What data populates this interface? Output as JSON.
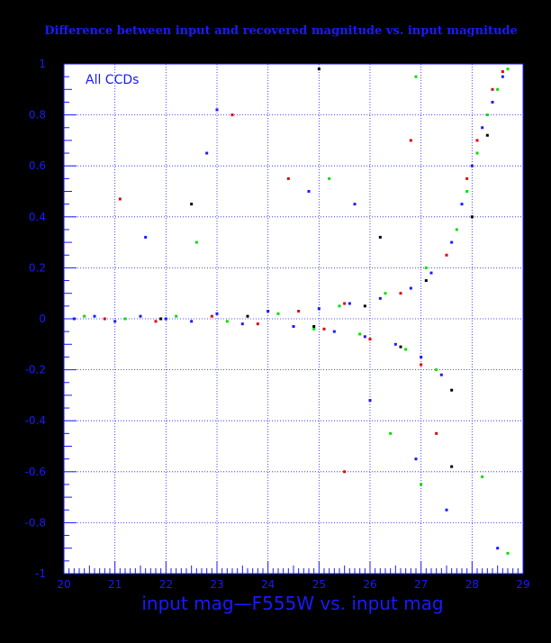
{
  "chart_data": {
    "type": "scatter",
    "title": "Difference between input and recovered magnitude vs. input magnitude",
    "xlabel": "input mag—F555W vs. input mag",
    "ylabel": "",
    "annotation": "All CCDs",
    "xlim": [
      20,
      29
    ],
    "ylim": [
      -1,
      1
    ],
    "x_ticks": [
      "20",
      "21",
      "22",
      "23",
      "24",
      "25",
      "26",
      "27",
      "28",
      "29"
    ],
    "y_ticks": [
      "-1",
      "-0.8",
      "-0.6",
      "-0.4",
      "-0.2",
      "0",
      "0.2",
      "0.4",
      "0.6",
      "0.8",
      "1"
    ],
    "grid": true,
    "colors": {
      "background": "#ffffff",
      "page": "#000000",
      "axis": "#1a1aff",
      "grid": "#1a1aff",
      "text": "#1a1aff"
    },
    "series": [
      {
        "color": "#1a1aff",
        "points": [
          [
            20.2,
            0.0
          ],
          [
            20.6,
            0.01
          ],
          [
            21.0,
            -0.01
          ],
          [
            21.5,
            0.01
          ],
          [
            22.0,
            0.0
          ],
          [
            22.5,
            -0.01
          ],
          [
            23.0,
            0.02
          ],
          [
            23.5,
            -0.02
          ],
          [
            24.0,
            0.03
          ],
          [
            24.5,
            -0.03
          ],
          [
            25.0,
            0.04
          ],
          [
            25.3,
            -0.05
          ],
          [
            25.6,
            0.06
          ],
          [
            25.9,
            -0.07
          ],
          [
            26.2,
            0.08
          ],
          [
            26.5,
            -0.1
          ],
          [
            26.8,
            0.12
          ],
          [
            27.0,
            -0.15
          ],
          [
            27.2,
            0.18
          ],
          [
            27.4,
            -0.22
          ],
          [
            27.6,
            0.3
          ],
          [
            27.8,
            0.45
          ],
          [
            28.0,
            0.6
          ],
          [
            28.2,
            0.75
          ],
          [
            28.4,
            0.85
          ],
          [
            28.6,
            0.95
          ],
          [
            23.0,
            0.82
          ],
          [
            24.8,
            0.5
          ],
          [
            25.7,
            0.45
          ],
          [
            26.9,
            -0.55
          ],
          [
            27.5,
            -0.75
          ],
          [
            28.5,
            -0.9
          ],
          [
            26.0,
            -0.32
          ],
          [
            22.8,
            0.65
          ],
          [
            21.6,
            0.32
          ]
        ]
      },
      {
        "color": "#00e000",
        "points": [
          [
            20.4,
            0.01
          ],
          [
            21.2,
            0.0
          ],
          [
            22.2,
            0.01
          ],
          [
            23.2,
            -0.01
          ],
          [
            24.2,
            0.02
          ],
          [
            24.9,
            -0.04
          ],
          [
            25.4,
            0.05
          ],
          [
            25.8,
            -0.06
          ],
          [
            26.3,
            0.1
          ],
          [
            26.7,
            -0.12
          ],
          [
            27.1,
            0.2
          ],
          [
            27.3,
            -0.2
          ],
          [
            27.7,
            0.35
          ],
          [
            27.9,
            0.5
          ],
          [
            28.1,
            0.65
          ],
          [
            28.3,
            0.8
          ],
          [
            28.5,
            0.9
          ],
          [
            28.7,
            0.98
          ],
          [
            26.9,
            0.95
          ],
          [
            25.2,
            0.55
          ],
          [
            27.0,
            -0.65
          ],
          [
            28.2,
            -0.62
          ],
          [
            28.7,
            -0.92
          ],
          [
            22.6,
            0.3
          ],
          [
            26.4,
            -0.45
          ]
        ]
      },
      {
        "color": "#e00000",
        "points": [
          [
            20.8,
            0.0
          ],
          [
            21.8,
            -0.01
          ],
          [
            22.9,
            0.01
          ],
          [
            23.8,
            -0.02
          ],
          [
            24.6,
            0.03
          ],
          [
            25.1,
            -0.04
          ],
          [
            25.5,
            0.06
          ],
          [
            26.0,
            -0.08
          ],
          [
            26.6,
            0.1
          ],
          [
            27.0,
            -0.18
          ],
          [
            27.5,
            0.25
          ],
          [
            27.9,
            0.55
          ],
          [
            28.1,
            0.7
          ],
          [
            28.4,
            0.9
          ],
          [
            28.6,
            0.97
          ],
          [
            23.3,
            0.8
          ],
          [
            21.1,
            0.47
          ],
          [
            25.5,
            -0.6
          ],
          [
            27.3,
            -0.45
          ],
          [
            24.4,
            0.55
          ],
          [
            26.8,
            0.7
          ]
        ]
      },
      {
        "color": "#000000",
        "points": [
          [
            21.9,
            0.0
          ],
          [
            23.6,
            0.01
          ],
          [
            24.9,
            -0.03
          ],
          [
            25.9,
            0.05
          ],
          [
            26.6,
            -0.11
          ],
          [
            27.1,
            0.15
          ],
          [
            27.6,
            -0.28
          ],
          [
            28.0,
            0.4
          ],
          [
            28.3,
            0.72
          ],
          [
            25.0,
            0.98
          ],
          [
            27.6,
            -0.58
          ],
          [
            22.5,
            0.45
          ],
          [
            26.2,
            0.32
          ]
        ]
      }
    ]
  }
}
